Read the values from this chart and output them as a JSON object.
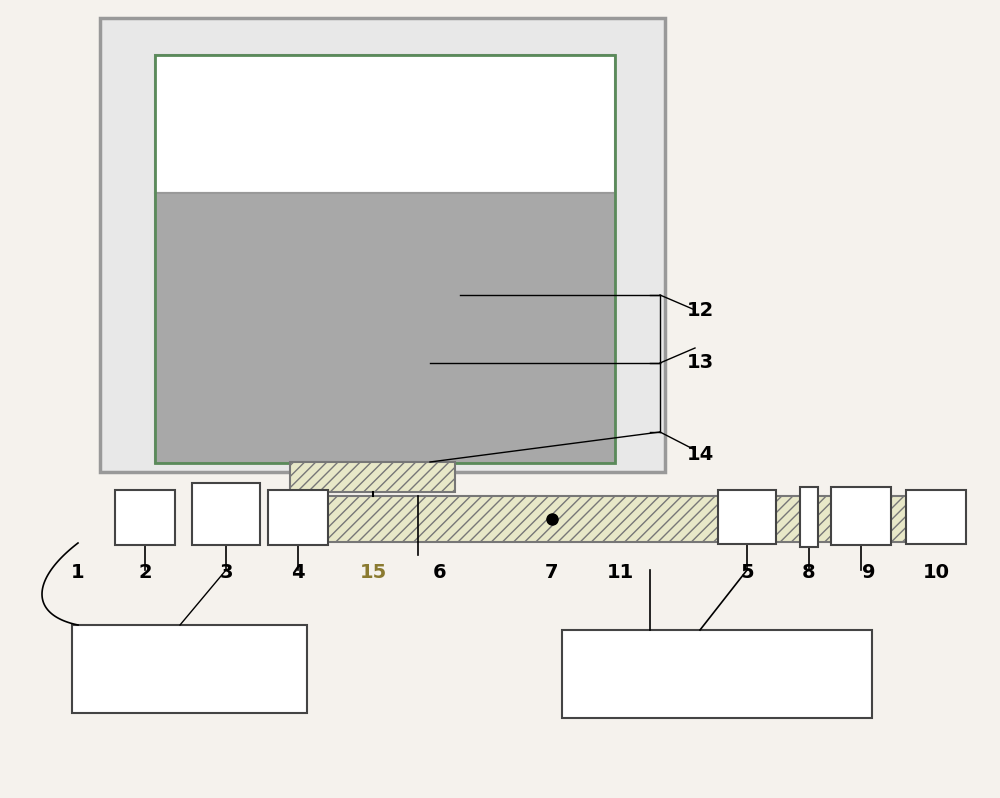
{
  "fig_bg": "#f5f2ed",
  "water_color": "#a8a8a8",
  "hatch_fc": "#e8e8c8",
  "white": "#ffffff",
  "gray_frame": "#e0e0e0",
  "edge_dark": "#333333",
  "edge_gray": "#777777",
  "green_edge": "#5a8a5a",
  "label_fontsize": 14,
  "label_fontweight": "bold",
  "label_color_normal": "#000000",
  "label_color_15": "#8a7a30"
}
